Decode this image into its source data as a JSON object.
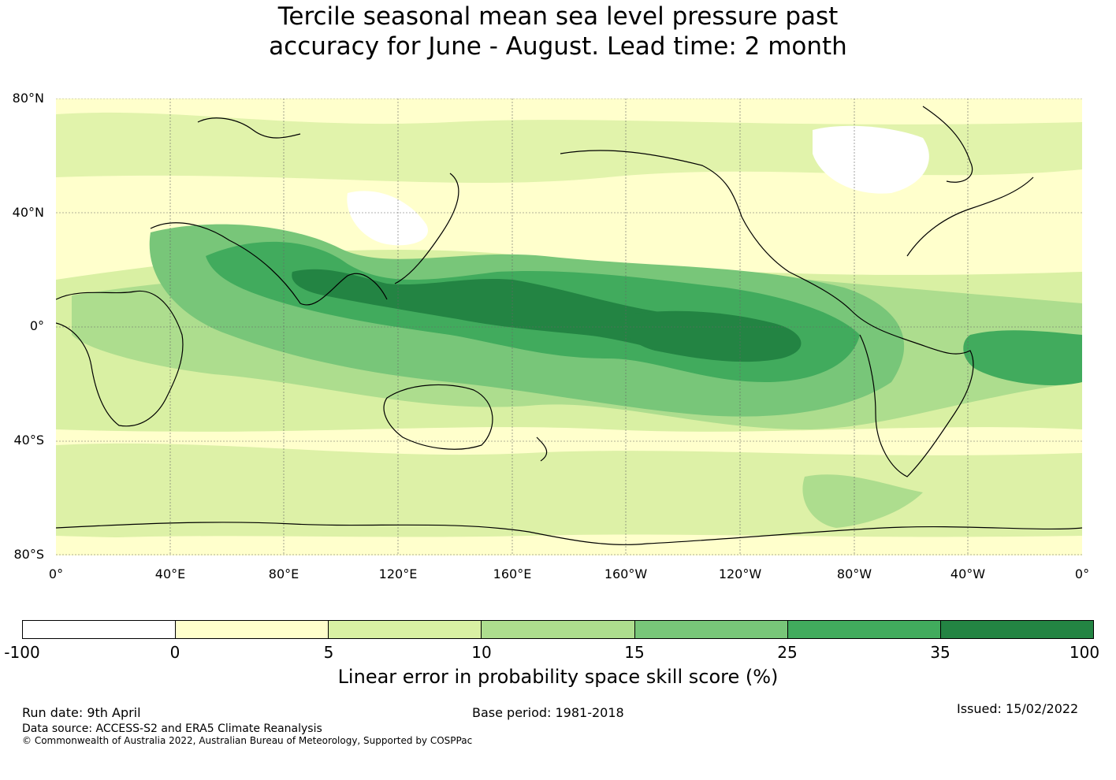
{
  "title": {
    "line1": "Tercile seasonal mean sea level pressure past",
    "line2": "accuracy for June - August. Lead time: 2 month"
  },
  "map": {
    "lat_labels": [
      "80°N",
      "40°N",
      "0°",
      "40°S",
      "80°S"
    ],
    "lon_labels": [
      "0°",
      "40°E",
      "80°E",
      "120°E",
      "160°E",
      "160°W",
      "120°W",
      "80°W",
      "40°W",
      "0°"
    ]
  },
  "colorbar": {
    "ticks": [
      "-100",
      "0",
      "5",
      "10",
      "15",
      "25",
      "35",
      "100"
    ],
    "colors": [
      "#ffffff",
      "#ffffcc",
      "#d9f0a3",
      "#addd8e",
      "#78c679",
      "#41ab5d",
      "#238443"
    ],
    "title": "Linear error in probability space skill score (%)"
  },
  "footer": {
    "run_date": "Run date: 9th April",
    "base_period": "Base period: 1981-2018",
    "issued": "Issued: 15/02/2022",
    "data_source": "Data source: ACCESS-S2 and ERA5 Climate Reanalysis",
    "copyright": "© Commonwealth of Australia 2022, Australian Bureau of Meteorology, Supported by COSPPac"
  }
}
